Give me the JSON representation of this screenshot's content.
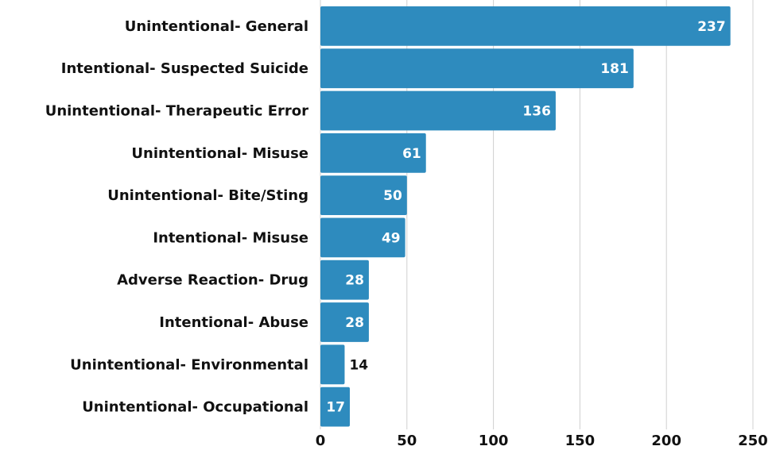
{
  "chart_data": {
    "type": "bar",
    "orientation": "horizontal",
    "categories": [
      "Unintentional- General",
      "Intentional- Suspected Suicide",
      "Unintentional- Therapeutic Error",
      "Unintentional- Misuse",
      "Unintentional- Bite/Sting",
      "Intentional- Misuse",
      "Adverse Reaction- Drug",
      "Intentional- Abuse",
      "Unintentional- Environmental",
      "Unintentional- Occupational"
    ],
    "values": [
      237,
      181,
      136,
      61,
      50,
      49,
      28,
      28,
      14,
      17
    ],
    "color": "#2e8bbe",
    "xlim": [
      0,
      250
    ],
    "xticks": [
      0,
      50,
      100,
      150,
      200,
      250
    ],
    "grid": true
  }
}
